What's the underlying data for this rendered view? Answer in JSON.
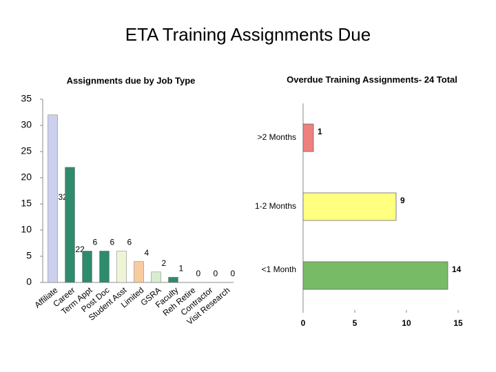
{
  "title": "ETA Training Assignments Due",
  "chart_data": [
    {
      "type": "bar",
      "title": "Assignments due by Job Type",
      "categories": [
        "Affiliate",
        "Career",
        "Term Appt",
        "Post Doc",
        "Student Asst",
        "Limited",
        "GSRA",
        "Faculty",
        "Reh Retire",
        "Contractor",
        "Visit Research"
      ],
      "values": [
        32,
        22,
        6,
        6,
        6,
        4,
        2,
        1,
        0,
        0,
        0
      ],
      "colors": [
        "#ccd0ee",
        "#2e8b6b",
        "#2e8b6b",
        "#2e8b6b",
        "#eef5d6",
        "#f8cba0",
        "#d8ecd0",
        "#2e8b6b",
        "#2e8b6b",
        "#2e8b6b",
        "#2e8b6b"
      ],
      "ylim": [
        0,
        35
      ],
      "yticks": [
        0,
        5,
        10,
        15,
        20,
        25,
        30,
        35
      ],
      "grid": false
    },
    {
      "type": "hbar",
      "title": "Overdue Training Assignments- 24 Total",
      "categories": [
        ">2 Months",
        "1-2 Months",
        "<1 Month"
      ],
      "values": [
        1,
        9,
        14
      ],
      "colors": [
        "#f08080",
        "#ffff80",
        "#77bb66"
      ],
      "xlim": [
        0,
        15
      ],
      "xticks": [
        0,
        5,
        10,
        15
      ],
      "grid": false
    }
  ]
}
